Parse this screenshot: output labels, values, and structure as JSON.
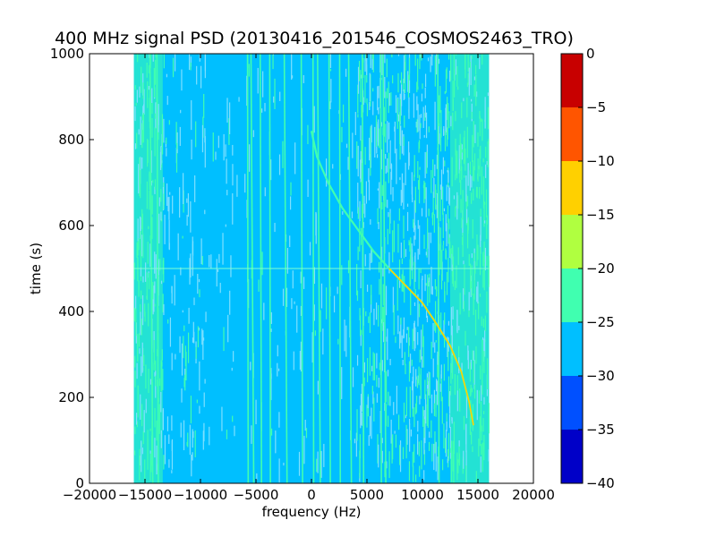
{
  "chart_data": {
    "type": "heatmap",
    "title": "400 MHz signal PSD (20130416_201546_COSMOS2463_TRO)",
    "xlabel": "frequency (Hz)",
    "ylabel": "time (s)",
    "xlim": [
      -20000,
      20000
    ],
    "ylim": [
      0,
      1000
    ],
    "x_ticks": [
      "−20000",
      "−15000",
      "−10000",
      "−5000",
      "0",
      "5000",
      "10000",
      "15000",
      "20000"
    ],
    "y_ticks": [
      "0",
      "200",
      "400",
      "600",
      "800",
      "1000"
    ],
    "data_extent_x": [
      -16000,
      16000
    ],
    "colorbar": {
      "levels": [
        -40,
        -35,
        -30,
        -25,
        -20,
        -15,
        -10,
        -5,
        0
      ],
      "tick_labels": [
        "−40",
        "−35",
        "−30",
        "−25",
        "−20",
        "−15",
        "−10",
        "−5",
        "0"
      ],
      "colors": [
        "#0000c8",
        "#0050ff",
        "#00bfff",
        "#40ffb0",
        "#b0ff40",
        "#ffd000",
        "#ff5500",
        "#c80000"
      ]
    },
    "background_level_range": [
      -30,
      -25
    ],
    "band_edge_level_range": [
      -25,
      -20
    ],
    "doppler_curve": {
      "description_points": [
        [
          0,
          820
        ],
        [
          500,
          760
        ],
        [
          1500,
          700
        ],
        [
          2800,
          640
        ],
        [
          4200,
          590
        ],
        [
          5600,
          540
        ],
        [
          7000,
          500
        ],
        [
          8500,
          460
        ],
        [
          10000,
          420
        ],
        [
          11300,
          370
        ],
        [
          12500,
          320
        ],
        [
          13500,
          260
        ],
        [
          14200,
          190
        ],
        [
          14600,
          135
        ]
      ]
    },
    "vertical_lines_x": [
      -14300,
      -13800,
      -5700,
      -5200,
      -4500,
      -3700,
      -2200,
      -800,
      200,
      800,
      1700,
      2600,
      3600,
      4700,
      6300,
      6700,
      11500
    ],
    "horizontal_line_y": 500
  }
}
